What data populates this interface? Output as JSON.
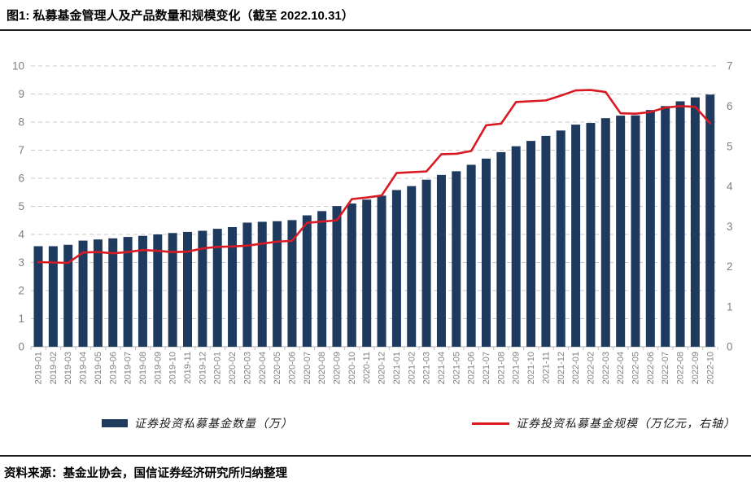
{
  "page": {
    "title": "图1: 私募基金管理人及产品数量和规模变化（截至 2022.10.31）",
    "source_note": "资料来源：基金业协会，国信证券经济研究所归纳整理"
  },
  "colors": {
    "bar": "#1f3a5f",
    "line": "#da1a22",
    "axis_text": "#808080",
    "grid": "#c9c9c9",
    "baseline": "#bfbfbf"
  },
  "chart_data": {
    "type": "bar",
    "title": "私募基金管理人及产品数量和规模变化",
    "categories": [
      "2019-01",
      "2019-02",
      "2019-03",
      "2019-04",
      "2019-05",
      "2019-06",
      "2019-07",
      "2019-08",
      "2019-09",
      "2019-10",
      "2019-11",
      "2019-12",
      "2020-01",
      "2020-02",
      "2020-03",
      "2020-04",
      "2020-05",
      "2020-06",
      "2020-07",
      "2020-08",
      "2020-09",
      "2020-10",
      "2020-11",
      "2020-12",
      "2021-01",
      "2021-02",
      "2021-03",
      "2021-04",
      "2021-05",
      "2021-06",
      "2021-07",
      "2021-08",
      "2021-09",
      "2021-10",
      "2021-11",
      "2021-12",
      "2022-01",
      "2022-02",
      "2022-03",
      "2022-04",
      "2022-05",
      "2022-06",
      "2022-07",
      "2022-08",
      "2022-09",
      "2022-10"
    ],
    "series": [
      {
        "name": "证券投资私募基金数量（万）",
        "type": "bar",
        "axis": "left",
        "values": [
          3.58,
          3.58,
          3.63,
          3.78,
          3.82,
          3.86,
          3.91,
          3.95,
          4.0,
          4.05,
          4.09,
          4.13,
          4.2,
          4.26,
          4.42,
          4.45,
          4.47,
          4.51,
          4.68,
          4.83,
          5.01,
          5.1,
          5.24,
          5.38,
          5.58,
          5.72,
          5.95,
          6.12,
          6.25,
          6.48,
          6.7,
          6.93,
          7.14,
          7.33,
          7.51,
          7.7,
          7.91,
          7.97,
          8.14,
          8.23,
          8.24,
          8.43,
          8.57,
          8.74,
          8.88,
          8.98
        ]
      },
      {
        "name": "证券投资私募基金规模（万亿元，右轴）",
        "type": "line",
        "axis": "right",
        "values": [
          2.11,
          2.1,
          2.09,
          2.35,
          2.36,
          2.33,
          2.36,
          2.41,
          2.39,
          2.36,
          2.37,
          2.45,
          2.49,
          2.5,
          2.52,
          2.57,
          2.62,
          2.64,
          3.09,
          3.12,
          3.15,
          3.68,
          3.72,
          3.77,
          4.33,
          4.35,
          4.37,
          4.8,
          4.81,
          4.88,
          5.52,
          5.56,
          6.1,
          6.12,
          6.14,
          6.26,
          6.39,
          6.4,
          6.35,
          5.82,
          5.81,
          5.85,
          5.96,
          6.0,
          5.98,
          5.57
        ]
      }
    ],
    "left_axis": {
      "min": 0,
      "max": 10,
      "step": 1,
      "tick_labels": [
        "0",
        "1",
        "2",
        "3",
        "4",
        "5",
        "6",
        "7",
        "8",
        "9",
        "10"
      ]
    },
    "right_axis": {
      "min": 0,
      "max": 7,
      "step": 1,
      "tick_labels": [
        "0",
        "1",
        "2",
        "3",
        "4",
        "5",
        "6",
        "7"
      ]
    },
    "grid": "horizontal-dashed",
    "legend_position": "bottom"
  }
}
